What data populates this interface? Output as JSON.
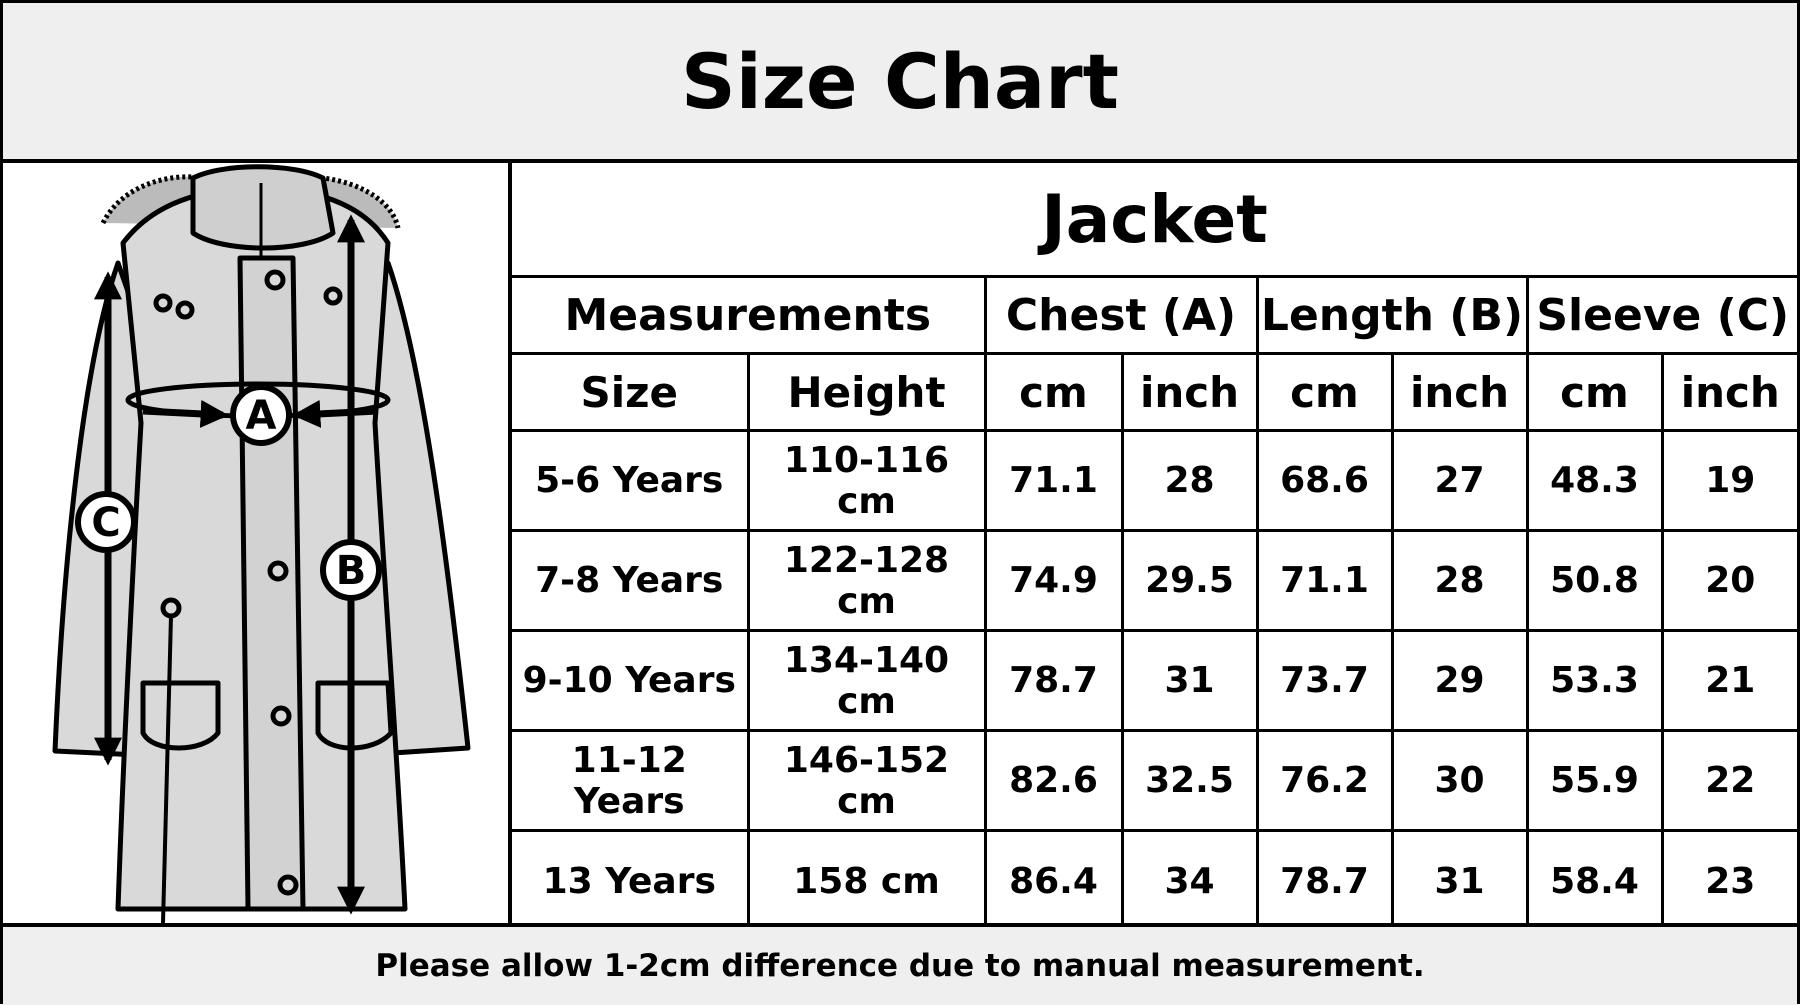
{
  "title": "Size Chart",
  "product": "Jacket",
  "diagram_labels": {
    "a": "A",
    "b": "B",
    "c": "C"
  },
  "groups": [
    "Measurements",
    "Chest (A)",
    "Length (B)",
    "Sleeve (C)"
  ],
  "subheaders": [
    "Size",
    "Height",
    "cm",
    "inch",
    "cm",
    "inch",
    "cm",
    "inch"
  ],
  "rows": [
    [
      "5-6 Years",
      "110-116 cm",
      "71.1",
      "28",
      "68.6",
      "27",
      "48.3",
      "19"
    ],
    [
      "7-8 Years",
      "122-128 cm",
      "74.9",
      "29.5",
      "71.1",
      "28",
      "50.8",
      "20"
    ],
    [
      "9-10 Years",
      "134-140 cm",
      "78.7",
      "31",
      "73.7",
      "29",
      "53.3",
      "21"
    ],
    [
      "11-12 Years",
      "146-152 cm",
      "82.6",
      "32.5",
      "76.2",
      "30",
      "55.9",
      "22"
    ],
    [
      "13 Years",
      "158 cm",
      "86.4",
      "34",
      "78.7",
      "31",
      "58.4",
      "23"
    ]
  ],
  "footer": "Please allow 1-2cm difference due to manual measurement."
}
